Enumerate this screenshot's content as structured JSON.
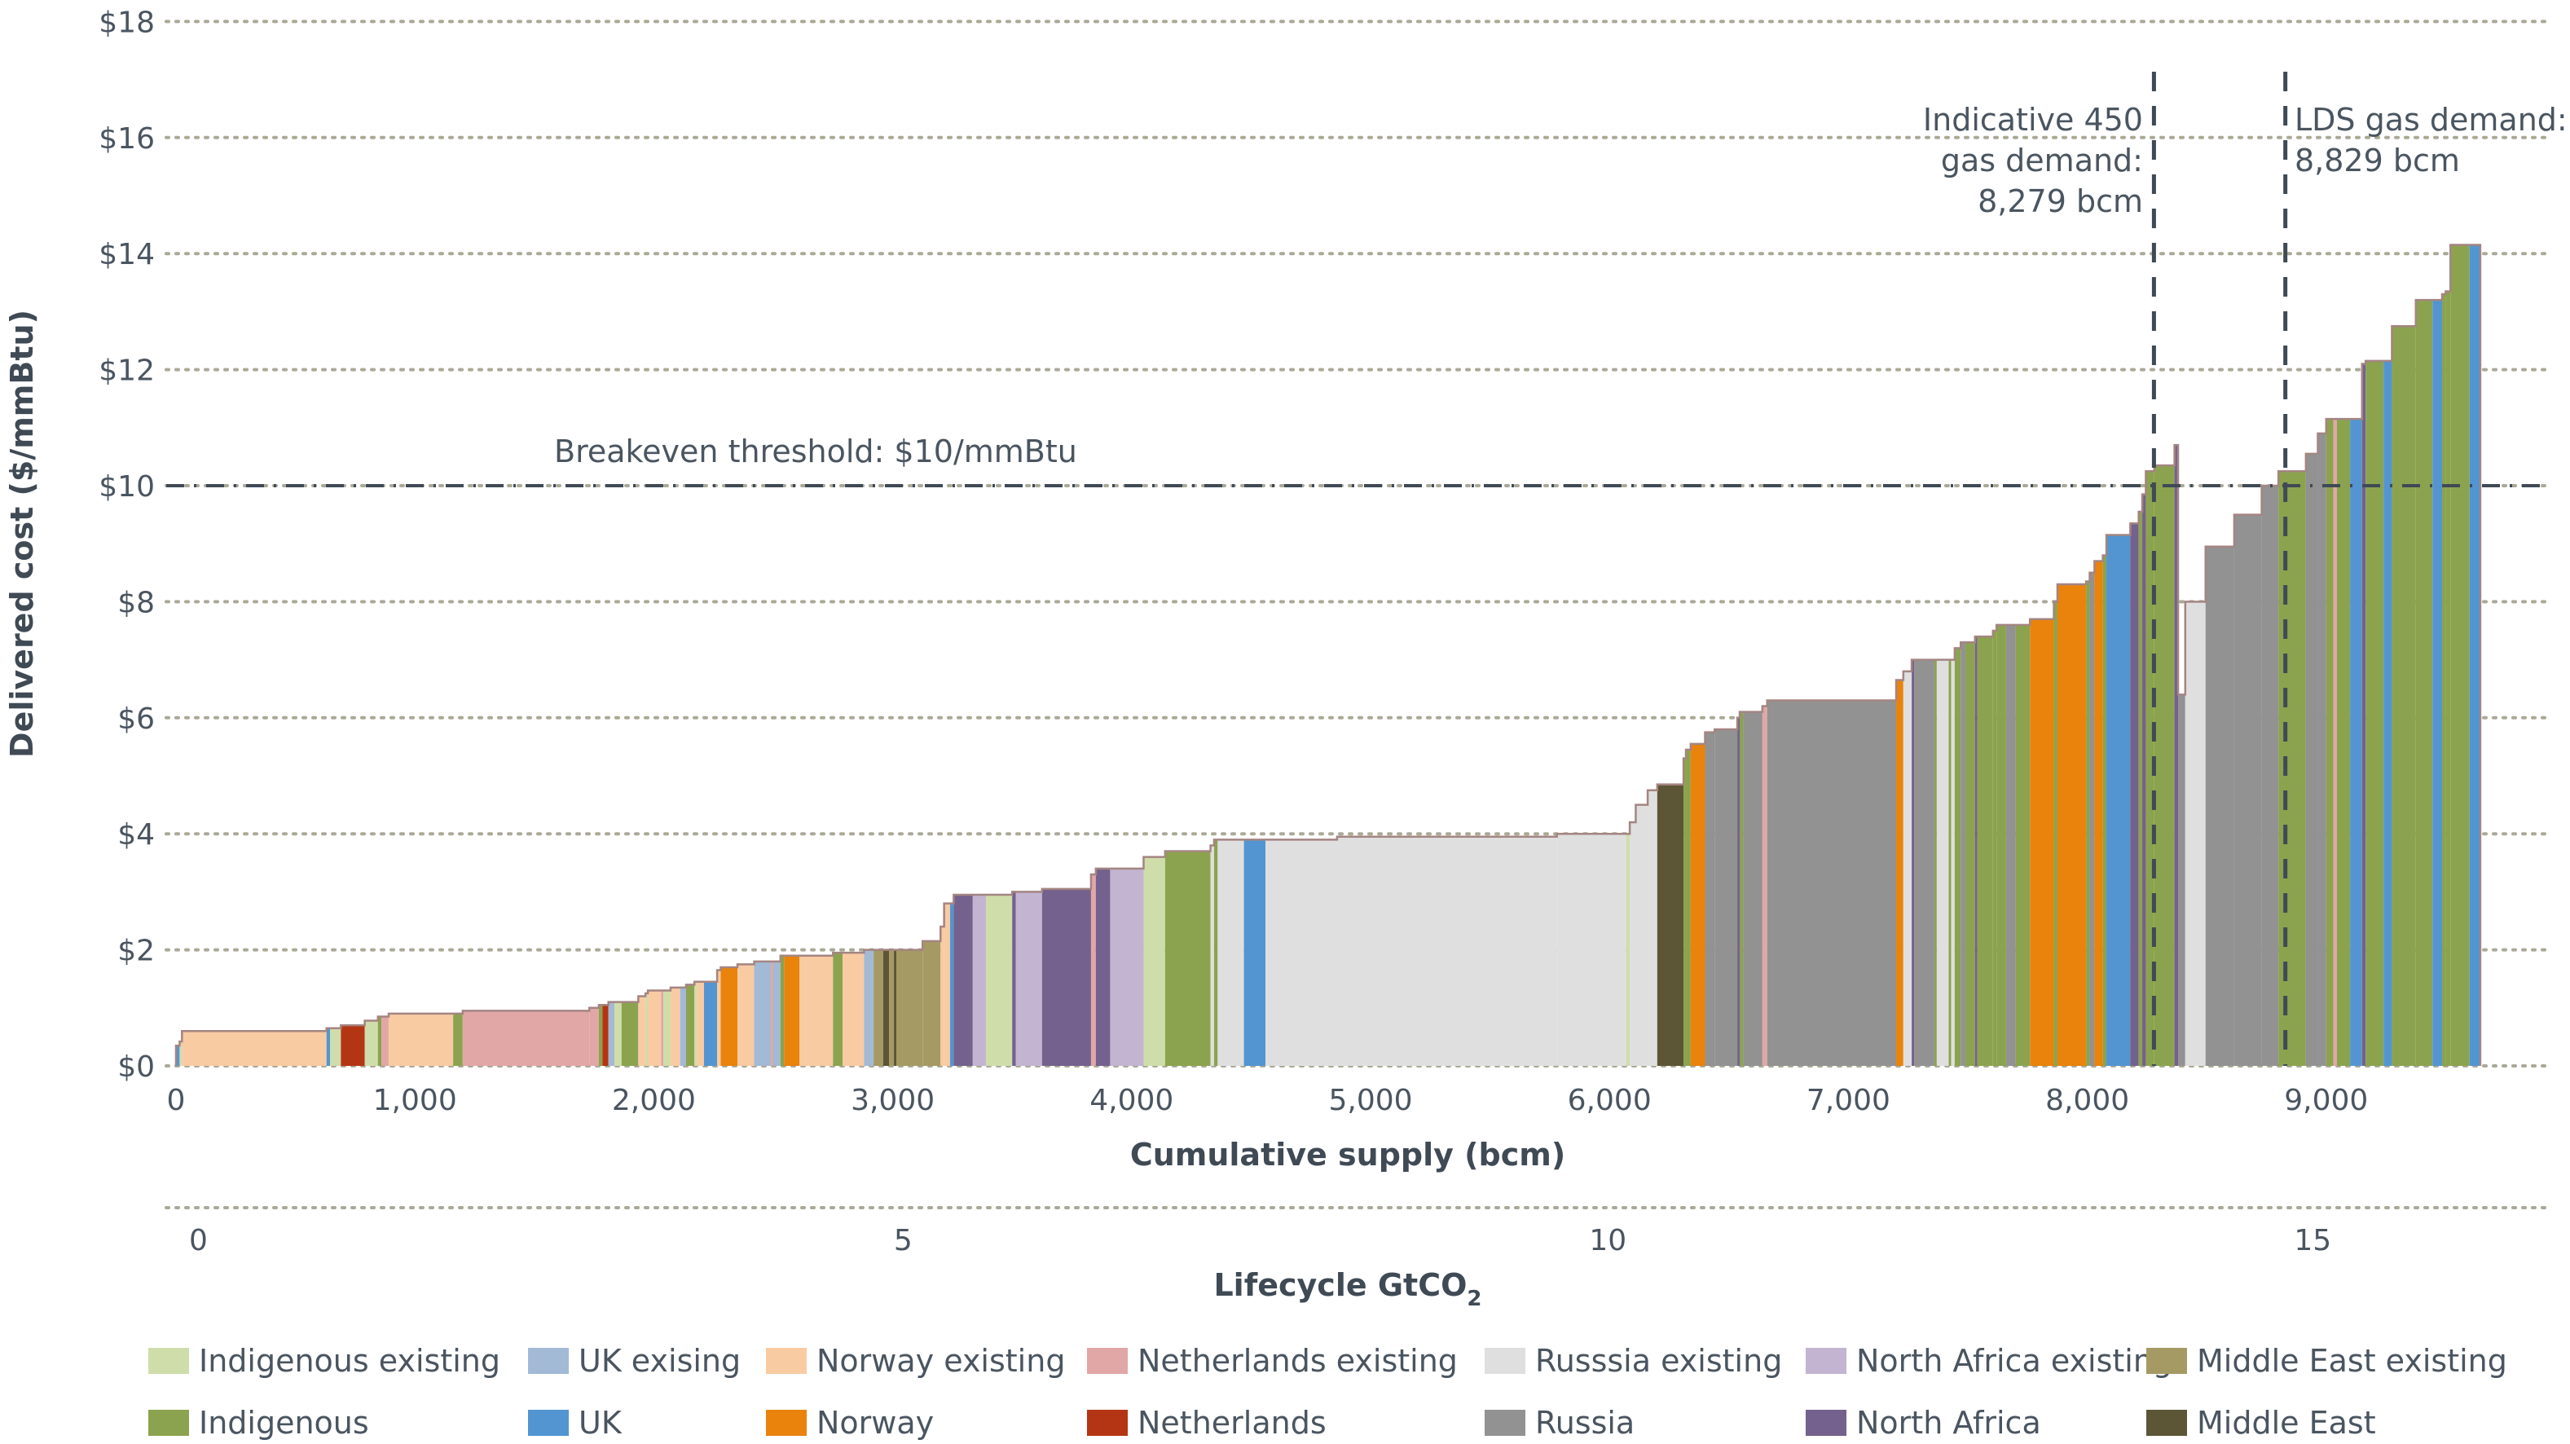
{
  "chart_data": {
    "type": "bar",
    "subtype": "supply-cost-curve",
    "title": "",
    "xlabel": "Cumulative supply (bcm)",
    "ylabel": "Delivered cost ($/mmBtu)",
    "secondary_xlabel": "Lifecycle GtCO",
    "secondary_xlabel_subscript": "2",
    "xlim": [
      0,
      9850
    ],
    "ylim": [
      0,
      18
    ],
    "grid": true,
    "y_ticks": [
      {
        "value": 0,
        "label": "$0"
      },
      {
        "value": 2,
        "label": "$2"
      },
      {
        "value": 4,
        "label": "$4"
      },
      {
        "value": 6,
        "label": "$6"
      },
      {
        "value": 8,
        "label": "$8"
      },
      {
        "value": 10,
        "label": "$10"
      },
      {
        "value": 12,
        "label": "$12"
      },
      {
        "value": 14,
        "label": "$14"
      },
      {
        "value": 16,
        "label": "$16"
      },
      {
        "value": 18,
        "label": "$18"
      }
    ],
    "x_ticks": [
      {
        "value": 0,
        "label": "0"
      },
      {
        "value": 1000,
        "label": "1,000"
      },
      {
        "value": 2000,
        "label": "2,000"
      },
      {
        "value": 3000,
        "label": "3,000"
      },
      {
        "value": 4000,
        "label": "4,000"
      },
      {
        "value": 5000,
        "label": "5,000"
      },
      {
        "value": 6000,
        "label": "6,000"
      },
      {
        "value": 7000,
        "label": "7,000"
      },
      {
        "value": 8000,
        "label": "8,000"
      },
      {
        "value": 9000,
        "label": "9,000"
      }
    ],
    "secondary_x_ticks": [
      {
        "value_bcm": 230,
        "label": "0"
      },
      {
        "value_bcm": 3180,
        "label": "5"
      },
      {
        "value_bcm": 6130,
        "label": "10"
      },
      {
        "value_bcm": 9080,
        "label": "15"
      }
    ],
    "reference_lines": [
      {
        "orientation": "horizontal",
        "value": 10,
        "label": "Breakeven threshold: $10/mmBtu"
      },
      {
        "orientation": "vertical",
        "value": 8279,
        "label_lines": [
          "Indicative 450",
          "gas demand:",
          "8,279 bcm"
        ],
        "label_align": "right"
      },
      {
        "orientation": "vertical",
        "value": 8829,
        "label_lines": [
          "LDS gas demand:",
          "8,829 bcm"
        ],
        "label_align": "left"
      }
    ],
    "categories": [
      {
        "key": "ind_ex",
        "name": "Indigenous existing",
        "color": "#cfddab"
      },
      {
        "key": "uk_ex",
        "name": "UK exising",
        "color": "#a2bad6"
      },
      {
        "key": "nor_ex",
        "name": "Norway existing",
        "color": "#f9cba3"
      },
      {
        "key": "nl_ex",
        "name": "Netherlands existing",
        "color": "#e1a7a6"
      },
      {
        "key": "ru_ex",
        "name": "Russsia existing",
        "color": "#dfdfdf"
      },
      {
        "key": "na_ex",
        "name": "North Africa existing",
        "color": "#c3b4d1"
      },
      {
        "key": "me_ex",
        "name": "Middle East existing",
        "color": "#a69a64"
      },
      {
        "key": "ind",
        "name": "Indigenous",
        "color": "#8ba34e"
      },
      {
        "key": "uk",
        "name": "UK",
        "color": "#5295d1"
      },
      {
        "key": "nor",
        "name": "Norway",
        "color": "#e9830c"
      },
      {
        "key": "nl",
        "name": "Netherlands",
        "color": "#b43513"
      },
      {
        "key": "ru",
        "name": "Russia",
        "color": "#929292"
      },
      {
        "key": "na",
        "name": "North Africa",
        "color": "#74618d"
      },
      {
        "key": "me",
        "name": "Middle East",
        "color": "#5c5536"
      }
    ],
    "segments": [
      {
        "x0": 0,
        "x1": 15,
        "cost": 0.35,
        "cat": "uk"
      },
      {
        "x0": 15,
        "x1": 25,
        "cost": 0.42,
        "cat": "ind_ex"
      },
      {
        "x0": 25,
        "x1": 630,
        "cost": 0.6,
        "cat": "nor_ex"
      },
      {
        "x0": 630,
        "x1": 645,
        "cost": 0.65,
        "cat": "uk"
      },
      {
        "x0": 645,
        "x1": 690,
        "cost": 0.65,
        "cat": "ind_ex"
      },
      {
        "x0": 690,
        "x1": 790,
        "cost": 0.7,
        "cat": "nl"
      },
      {
        "x0": 790,
        "x1": 845,
        "cost": 0.78,
        "cat": "ind_ex"
      },
      {
        "x0": 845,
        "x1": 860,
        "cost": 0.85,
        "cat": "ind"
      },
      {
        "x0": 860,
        "x1": 890,
        "cost": 0.85,
        "cat": "nl_ex"
      },
      {
        "x0": 890,
        "x1": 1160,
        "cost": 0.9,
        "cat": "nor_ex"
      },
      {
        "x0": 1160,
        "x1": 1200,
        "cost": 0.9,
        "cat": "ind"
      },
      {
        "x0": 1200,
        "x1": 1730,
        "cost": 0.95,
        "cat": "nl_ex"
      },
      {
        "x0": 1730,
        "x1": 1770,
        "cost": 1.0,
        "cat": "nl_ex"
      },
      {
        "x0": 1770,
        "x1": 1785,
        "cost": 1.05,
        "cat": "ind"
      },
      {
        "x0": 1785,
        "x1": 1810,
        "cost": 1.05,
        "cat": "nl"
      },
      {
        "x0": 1810,
        "x1": 1835,
        "cost": 1.1,
        "cat": "uk_ex"
      },
      {
        "x0": 1835,
        "x1": 1865,
        "cost": 1.1,
        "cat": "ind_ex"
      },
      {
        "x0": 1865,
        "x1": 1935,
        "cost": 1.1,
        "cat": "ind"
      },
      {
        "x0": 1935,
        "x1": 1965,
        "cost": 1.2,
        "cat": "nor_ex"
      },
      {
        "x0": 1965,
        "x1": 1975,
        "cost": 1.25,
        "cat": "ind_ex"
      },
      {
        "x0": 1975,
        "x1": 2030,
        "cost": 1.3,
        "cat": "nor_ex"
      },
      {
        "x0": 2030,
        "x1": 2040,
        "cost": 1.3,
        "cat": "nl_ex"
      },
      {
        "x0": 2040,
        "x1": 2070,
        "cost": 1.3,
        "cat": "ind_ex"
      },
      {
        "x0": 2070,
        "x1": 2110,
        "cost": 1.35,
        "cat": "nor_ex"
      },
      {
        "x0": 2110,
        "x1": 2135,
        "cost": 1.35,
        "cat": "uk_ex"
      },
      {
        "x0": 2135,
        "x1": 2170,
        "cost": 1.4,
        "cat": "ind"
      },
      {
        "x0": 2170,
        "x1": 2180,
        "cost": 1.45,
        "cat": "ind_ex"
      },
      {
        "x0": 2180,
        "x1": 2210,
        "cost": 1.45,
        "cat": "nor_ex"
      },
      {
        "x0": 2210,
        "x1": 2265,
        "cost": 1.45,
        "cat": "uk"
      },
      {
        "x0": 2265,
        "x1": 2280,
        "cost": 1.65,
        "cat": "nor_ex"
      },
      {
        "x0": 2280,
        "x1": 2350,
        "cost": 1.7,
        "cat": "nor"
      },
      {
        "x0": 2350,
        "x1": 2420,
        "cost": 1.75,
        "cat": "nor_ex"
      },
      {
        "x0": 2420,
        "x1": 2490,
        "cost": 1.8,
        "cat": "uk_ex"
      },
      {
        "x0": 2490,
        "x1": 2500,
        "cost": 1.8,
        "cat": "nl_ex"
      },
      {
        "x0": 2500,
        "x1": 2530,
        "cost": 1.8,
        "cat": "uk_ex"
      },
      {
        "x0": 2530,
        "x1": 2545,
        "cost": 1.9,
        "cat": "ind"
      },
      {
        "x0": 2545,
        "x1": 2610,
        "cost": 1.9,
        "cat": "nor"
      },
      {
        "x0": 2610,
        "x1": 2750,
        "cost": 1.9,
        "cat": "nor_ex"
      },
      {
        "x0": 2750,
        "x1": 2790,
        "cost": 1.95,
        "cat": "ind"
      },
      {
        "x0": 2790,
        "x1": 2880,
        "cost": 1.95,
        "cat": "nor_ex"
      },
      {
        "x0": 2880,
        "x1": 2920,
        "cost": 2.0,
        "cat": "uk_ex"
      },
      {
        "x0": 2920,
        "x1": 2960,
        "cost": 2.0,
        "cat": "me_ex"
      },
      {
        "x0": 2960,
        "x1": 2985,
        "cost": 2.0,
        "cat": "me"
      },
      {
        "x0": 2985,
        "x1": 3005,
        "cost": 2.0,
        "cat": "me_ex"
      },
      {
        "x0": 3005,
        "x1": 3015,
        "cost": 2.0,
        "cat": "me"
      },
      {
        "x0": 3015,
        "x1": 3125,
        "cost": 2.0,
        "cat": "me_ex"
      },
      {
        "x0": 3125,
        "x1": 3200,
        "cost": 2.15,
        "cat": "me_ex"
      },
      {
        "x0": 3200,
        "x1": 3215,
        "cost": 2.4,
        "cat": "nor_ex"
      },
      {
        "x0": 3215,
        "x1": 3240,
        "cost": 2.8,
        "cat": "nor_ex"
      },
      {
        "x0": 3240,
        "x1": 3255,
        "cost": 2.8,
        "cat": "uk"
      },
      {
        "x0": 3255,
        "x1": 3335,
        "cost": 2.95,
        "cat": "na"
      },
      {
        "x0": 3335,
        "x1": 3390,
        "cost": 2.95,
        "cat": "na_ex"
      },
      {
        "x0": 3390,
        "x1": 3500,
        "cost": 2.95,
        "cat": "ind_ex"
      },
      {
        "x0": 3500,
        "x1": 3515,
        "cost": 3.0,
        "cat": "na"
      },
      {
        "x0": 3515,
        "x1": 3625,
        "cost": 3.0,
        "cat": "na_ex"
      },
      {
        "x0": 3625,
        "x1": 3830,
        "cost": 3.05,
        "cat": "na"
      },
      {
        "x0": 3830,
        "x1": 3850,
        "cost": 3.3,
        "cat": "nl_ex"
      },
      {
        "x0": 3850,
        "x1": 3910,
        "cost": 3.4,
        "cat": "na"
      },
      {
        "x0": 3910,
        "x1": 4050,
        "cost": 3.4,
        "cat": "na_ex"
      },
      {
        "x0": 4050,
        "x1": 4140,
        "cost": 3.6,
        "cat": "ind_ex"
      },
      {
        "x0": 4140,
        "x1": 4330,
        "cost": 3.7,
        "cat": "ind"
      },
      {
        "x0": 4330,
        "x1": 4345,
        "cost": 3.8,
        "cat": "ru_ex"
      },
      {
        "x0": 4345,
        "x1": 4360,
        "cost": 3.9,
        "cat": "ind"
      },
      {
        "x0": 4360,
        "x1": 4470,
        "cost": 3.9,
        "cat": "ru_ex"
      },
      {
        "x0": 4470,
        "x1": 4560,
        "cost": 3.9,
        "cat": "uk"
      },
      {
        "x0": 4560,
        "x1": 4860,
        "cost": 3.9,
        "cat": "ru_ex"
      },
      {
        "x0": 4860,
        "x1": 5780,
        "cost": 3.95,
        "cat": "ru_ex"
      },
      {
        "x0": 5780,
        "x1": 6070,
        "cost": 4.0,
        "cat": "ru_ex"
      },
      {
        "x0": 6070,
        "x1": 6085,
        "cost": 4.0,
        "cat": "ind_ex"
      },
      {
        "x0": 6085,
        "x1": 6110,
        "cost": 4.2,
        "cat": "ru_ex"
      },
      {
        "x0": 6110,
        "x1": 6160,
        "cost": 4.5,
        "cat": "ru_ex"
      },
      {
        "x0": 6160,
        "x1": 6200,
        "cost": 4.75,
        "cat": "ru_ex"
      },
      {
        "x0": 6200,
        "x1": 6310,
        "cost": 4.85,
        "cat": "me"
      },
      {
        "x0": 6310,
        "x1": 6320,
        "cost": 5.3,
        "cat": "ind"
      },
      {
        "x0": 6320,
        "x1": 6340,
        "cost": 5.45,
        "cat": "ind"
      },
      {
        "x0": 6340,
        "x1": 6400,
        "cost": 5.55,
        "cat": "nor"
      },
      {
        "x0": 6400,
        "x1": 6440,
        "cost": 5.75,
        "cat": "ru"
      },
      {
        "x0": 6440,
        "x1": 6535,
        "cost": 5.8,
        "cat": "ru"
      },
      {
        "x0": 6535,
        "x1": 6545,
        "cost": 6.0,
        "cat": "na"
      },
      {
        "x0": 6545,
        "x1": 6560,
        "cost": 6.1,
        "cat": "ind"
      },
      {
        "x0": 6560,
        "x1": 6640,
        "cost": 6.1,
        "cat": "ru"
      },
      {
        "x0": 6640,
        "x1": 6660,
        "cost": 6.2,
        "cat": "nl_ex"
      },
      {
        "x0": 6660,
        "x1": 7200,
        "cost": 6.3,
        "cat": "ru"
      },
      {
        "x0": 7200,
        "x1": 7230,
        "cost": 6.65,
        "cat": "nor"
      },
      {
        "x0": 7230,
        "x1": 7265,
        "cost": 6.8,
        "cat": "ru_ex"
      },
      {
        "x0": 7265,
        "x1": 7275,
        "cost": 7.0,
        "cat": "na"
      },
      {
        "x0": 7275,
        "x1": 7360,
        "cost": 7.0,
        "cat": "ru"
      },
      {
        "x0": 7360,
        "x1": 7370,
        "cost": 7.0,
        "cat": "ind"
      },
      {
        "x0": 7370,
        "x1": 7420,
        "cost": 7.0,
        "cat": "ru_ex"
      },
      {
        "x0": 7420,
        "x1": 7430,
        "cost": 7.0,
        "cat": "ind"
      },
      {
        "x0": 7430,
        "x1": 7445,
        "cost": 7.0,
        "cat": "ru_ex"
      },
      {
        "x0": 7445,
        "x1": 7470,
        "cost": 7.2,
        "cat": "ind"
      },
      {
        "x0": 7470,
        "x1": 7490,
        "cost": 7.3,
        "cat": "ru"
      },
      {
        "x0": 7490,
        "x1": 7530,
        "cost": 7.3,
        "cat": "ind"
      },
      {
        "x0": 7530,
        "x1": 7540,
        "cost": 7.4,
        "cat": "na"
      },
      {
        "x0": 7540,
        "x1": 7605,
        "cost": 7.4,
        "cat": "ind"
      },
      {
        "x0": 7605,
        "x1": 7620,
        "cost": 7.5,
        "cat": "ind"
      },
      {
        "x0": 7620,
        "x1": 7660,
        "cost": 7.6,
        "cat": "ind"
      },
      {
        "x0": 7660,
        "x1": 7700,
        "cost": 7.6,
        "cat": "ru"
      },
      {
        "x0": 7700,
        "x1": 7760,
        "cost": 7.6,
        "cat": "ind"
      },
      {
        "x0": 7760,
        "x1": 7860,
        "cost": 7.7,
        "cat": "nor"
      },
      {
        "x0": 7860,
        "x1": 7875,
        "cost": 8.0,
        "cat": "ind"
      },
      {
        "x0": 7875,
        "x1": 7995,
        "cost": 8.3,
        "cat": "nor"
      },
      {
        "x0": 7995,
        "x1": 8010,
        "cost": 8.35,
        "cat": "ind"
      },
      {
        "x0": 8010,
        "x1": 8030,
        "cost": 8.5,
        "cat": "ru"
      },
      {
        "x0": 8030,
        "x1": 8065,
        "cost": 8.7,
        "cat": "nor"
      },
      {
        "x0": 8065,
        "x1": 8080,
        "cost": 8.8,
        "cat": "ind"
      },
      {
        "x0": 8080,
        "x1": 8180,
        "cost": 9.15,
        "cat": "uk"
      },
      {
        "x0": 8180,
        "x1": 8215,
        "cost": 9.35,
        "cat": "na"
      },
      {
        "x0": 8215,
        "x1": 8230,
        "cost": 9.55,
        "cat": "ind"
      },
      {
        "x0": 8230,
        "x1": 8245,
        "cost": 9.85,
        "cat": "na"
      },
      {
        "x0": 8245,
        "x1": 8280,
        "cost": 10.25,
        "cat": "ind"
      },
      {
        "x0": 8280,
        "x1": 8365,
        "cost": 10.35,
        "cat": "ind"
      },
      {
        "x0": 8365,
        "x1": 8380,
        "cost": 10.7,
        "cat": "na"
      },
      {
        "x0": 8380,
        "x1": 8410,
        "cost": 6.4,
        "cat": "ru"
      },
      {
        "x0": 8410,
        "x1": 8495,
        "cost": 8.0,
        "cat": "ru_ex"
      },
      {
        "x0": 8495,
        "x1": 8615,
        "cost": 8.95,
        "cat": "ru"
      },
      {
        "x0": 8615,
        "x1": 8730,
        "cost": 9.5,
        "cat": "ru"
      },
      {
        "x0": 8730,
        "x1": 8800,
        "cost": 10.0,
        "cat": "ru"
      },
      {
        "x0": 8800,
        "x1": 8915,
        "cost": 10.25,
        "cat": "ind"
      },
      {
        "x0": 8915,
        "x1": 8965,
        "cost": 10.55,
        "cat": "ru"
      },
      {
        "x0": 8965,
        "x1": 9000,
        "cost": 10.9,
        "cat": "ru"
      },
      {
        "x0": 9000,
        "x1": 9030,
        "cost": 11.15,
        "cat": "ind"
      },
      {
        "x0": 9030,
        "x1": 9045,
        "cost": 11.15,
        "cat": "nl_ex"
      },
      {
        "x0": 9045,
        "x1": 9100,
        "cost": 11.15,
        "cat": "ind"
      },
      {
        "x0": 9100,
        "x1": 9150,
        "cost": 11.15,
        "cat": "uk"
      },
      {
        "x0": 9150,
        "x1": 9165,
        "cost": 12.1,
        "cat": "na"
      },
      {
        "x0": 9165,
        "x1": 9240,
        "cost": 12.15,
        "cat": "ind"
      },
      {
        "x0": 9240,
        "x1": 9275,
        "cost": 12.15,
        "cat": "uk"
      },
      {
        "x0": 9275,
        "x1": 9375,
        "cost": 12.75,
        "cat": "ind"
      },
      {
        "x0": 9375,
        "x1": 9445,
        "cost": 13.2,
        "cat": "ind"
      },
      {
        "x0": 9445,
        "x1": 9485,
        "cost": 13.2,
        "cat": "uk"
      },
      {
        "x0": 9485,
        "x1": 9500,
        "cost": 13.3,
        "cat": "ind"
      },
      {
        "x0": 9500,
        "x1": 9520,
        "cost": 13.35,
        "cat": "ind"
      },
      {
        "x0": 9520,
        "x1": 9600,
        "cost": 14.15,
        "cat": "ind"
      },
      {
        "x0": 9600,
        "x1": 9645,
        "cost": 14.15,
        "cat": "uk"
      }
    ]
  }
}
